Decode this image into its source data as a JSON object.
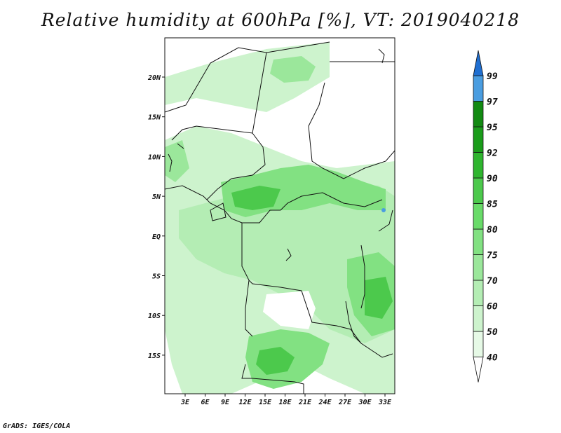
{
  "title": "Relative humidity at 600hPa [%], VT: 2019040218",
  "credit": "GrADS: IGES/COLA",
  "map": {
    "lon_labels": [
      "3E",
      "6E",
      "9E",
      "12E",
      "15E",
      "18E",
      "21E",
      "24E",
      "27E",
      "30E",
      "33E"
    ],
    "lat_labels": [
      "20N",
      "15N",
      "10N",
      "5N",
      "EQ",
      "5S",
      "10S",
      "15S"
    ],
    "variable": "Relative humidity",
    "level": "600hPa",
    "units": "%",
    "valid_time": "2019040218"
  },
  "colorbar": {
    "levels": [
      "40",
      "50",
      "60",
      "70",
      "75",
      "80",
      "85",
      "90",
      "92",
      "95",
      "97",
      "99"
    ],
    "colors": [
      "#ffffff",
      "#e6f9e6",
      "#cdf3cd",
      "#b4edb4",
      "#9be79b",
      "#82e182",
      "#69db69",
      "#4cc94c",
      "#2fb52f",
      "#1a9c1a",
      "#128a12",
      "#4a9de0",
      "#1f6fd1"
    ]
  }
}
